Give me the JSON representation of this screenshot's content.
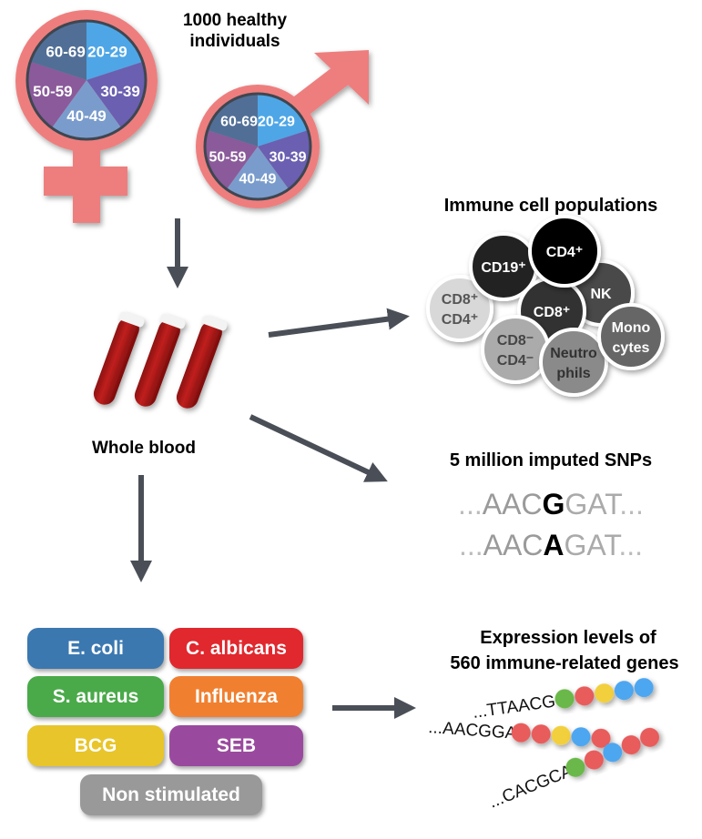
{
  "title": "1000 healthy individuals",
  "age_groups": [
    "20-29",
    "30-39",
    "40-49",
    "50-59",
    "60-69"
  ],
  "age_colors": [
    "#4ea6e6",
    "#6a5fb0",
    "#7a9ccc",
    "#8a5a9a",
    "#516f96"
  ],
  "symbol_color": "#ee7e7e",
  "arrow_color": "#4a4f57",
  "whole_blood_label": "Whole blood",
  "immune": {
    "title": "Immune cell populations",
    "cells": [
      {
        "label": "CD8⁺\nCD4⁺",
        "fill": "#d8d8d8",
        "text": "#555"
      },
      {
        "label": "CD19⁺",
        "fill": "#222222",
        "text": "#fff"
      },
      {
        "label": "NK",
        "fill": "#4a4a4a",
        "text": "#fff"
      },
      {
        "label": "CD8⁺",
        "fill": "#333333",
        "text": "#fff"
      },
      {
        "label": "CD4⁺",
        "fill": "#000000",
        "text": "#fff"
      },
      {
        "label": "CD8⁻\nCD4⁻",
        "fill": "#ababab",
        "text": "#444"
      },
      {
        "label": "Neutro\nphils",
        "fill": "#8a8a8a",
        "text": "#333"
      },
      {
        "label": "Mono\ncytes",
        "fill": "#666666",
        "text": "#fff"
      }
    ]
  },
  "snps": {
    "title": "5 million imputed SNPs",
    "rows": [
      {
        "prefix": "...",
        "before": "AAC",
        "variant": "G",
        "after": "GAT",
        "suffix": "..."
      },
      {
        "prefix": "...",
        "before": "AAC",
        "variant": "A",
        "after": "GAT",
        "suffix": "..."
      }
    ]
  },
  "expression": {
    "title_line1": "Expression levels of",
    "title_line2": "560 immune-related genes",
    "strands": [
      {
        "seq": "...TTAACGG",
        "beads": [
          "#6ab84a",
          "#e85c5c",
          "#f2cf3c",
          "#4ea6f0",
          "#4ea6f0"
        ]
      },
      {
        "seq": "...AACGGAT",
        "beads": [
          "#e85c5c",
          "#e85c5c",
          "#f2cf3c",
          "#4ea6f0",
          "#e85c5c"
        ]
      },
      {
        "seq": "...CACGCAA",
        "beads": [
          "#6ab84a",
          "#e85c5c",
          "#4ea6f0",
          "#e85c5c",
          "#e85c5c"
        ]
      }
    ]
  },
  "stimuli": [
    {
      "label": "E. coli",
      "color": "#3b78b0"
    },
    {
      "label": "C. albicans",
      "color": "#e0282e"
    },
    {
      "label": "S. aureus",
      "color": "#4aaa4a"
    },
    {
      "label": "Influenza",
      "color": "#f08030"
    },
    {
      "label": "BCG",
      "color": "#e8c52a"
    },
    {
      "label": "SEB",
      "color": "#9a4a9e"
    },
    {
      "label": "Non stimulated",
      "color": "#999999"
    }
  ]
}
